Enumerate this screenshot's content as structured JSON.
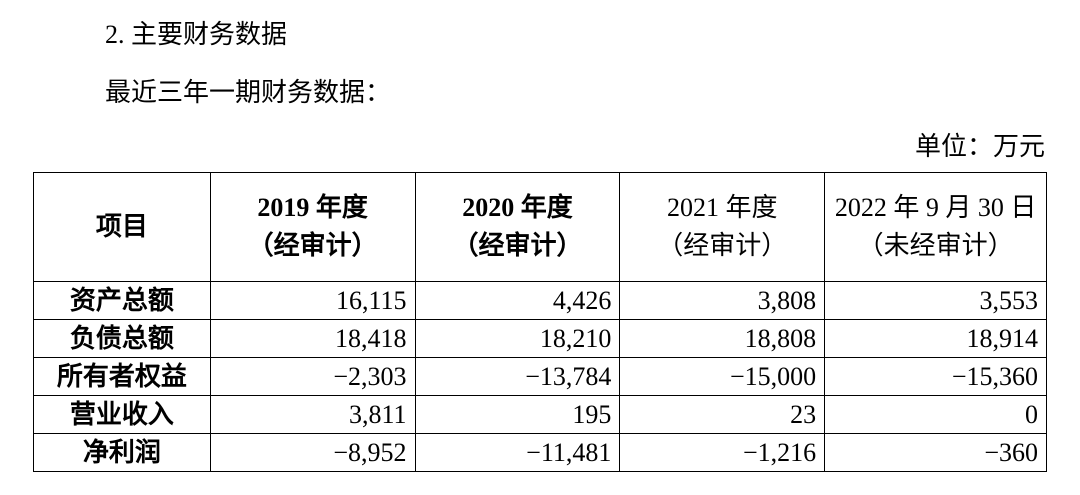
{
  "header": {
    "section_title": "2. 主要财务数据",
    "subtitle": "最近三年一期财务数据：",
    "unit": "单位：万元"
  },
  "table": {
    "columns": [
      {
        "title": "项目"
      },
      {
        "title": "2019 年度",
        "note": "（经审计）"
      },
      {
        "title": "2020 年度",
        "note": "（经审计）"
      },
      {
        "title": "2021 年度",
        "note": "（经审计）"
      },
      {
        "title": "2022 年 9 月 30 日",
        "note": "（未经审计）"
      }
    ],
    "rows": [
      [
        "资产总额",
        "16,115",
        "4,426",
        "3,808",
        "3,553"
      ],
      [
        "负债总额",
        "18,418",
        "18,210",
        "18,808",
        "18,914"
      ],
      [
        "所有者权益",
        "−2,303",
        "−13,784",
        "−15,000",
        "−15,360"
      ],
      [
        "营业收入",
        "3,811",
        "195",
        "23",
        "0"
      ],
      [
        "净利润",
        "−8,952",
        "−11,481",
        "−1,216",
        "−360"
      ]
    ]
  }
}
